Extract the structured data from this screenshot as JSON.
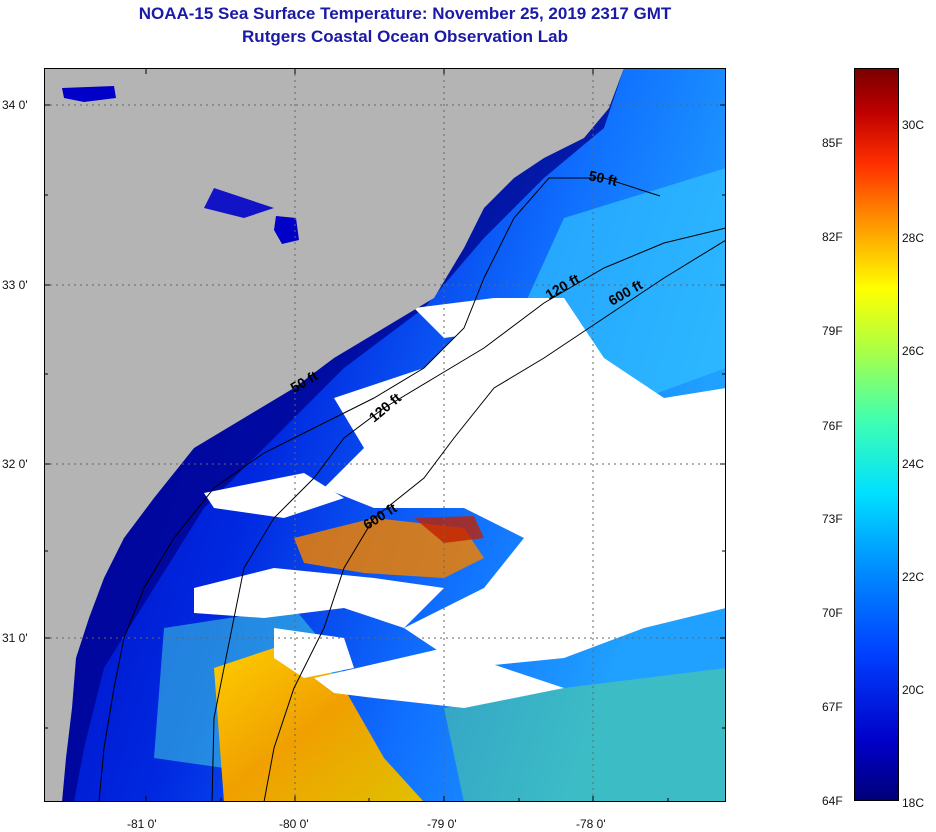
{
  "title": {
    "line1": "NOAA-15 Sea Surface Temperature:  November 25, 2019 2317 GMT",
    "line2": "Rutgers Coastal Ocean Observation Lab"
  },
  "map": {
    "lat_labels": [
      "34 0'",
      "33 0'",
      "32 0'",
      "31 0'"
    ],
    "lon_labels": [
      "-81 0'",
      "-80 0'",
      "-79 0'",
      "-78 0'"
    ],
    "contour_labels": [
      "50 ft",
      "50 ft",
      "120 ft",
      "120 ft",
      "600 ft",
      "600 ft"
    ],
    "colors": {
      "land": "#b4b4b4",
      "cloud": "#ffffff",
      "coast": "#000080"
    }
  },
  "colorbar": {
    "fahrenheit": [
      "85F",
      "82F",
      "79F",
      "76F",
      "73F",
      "70F",
      "67F",
      "64F"
    ],
    "celsius": [
      "30C",
      "28C",
      "26C",
      "24C",
      "22C",
      "20C",
      "18C"
    ],
    "range_c": [
      17.8,
      31.5
    ]
  }
}
